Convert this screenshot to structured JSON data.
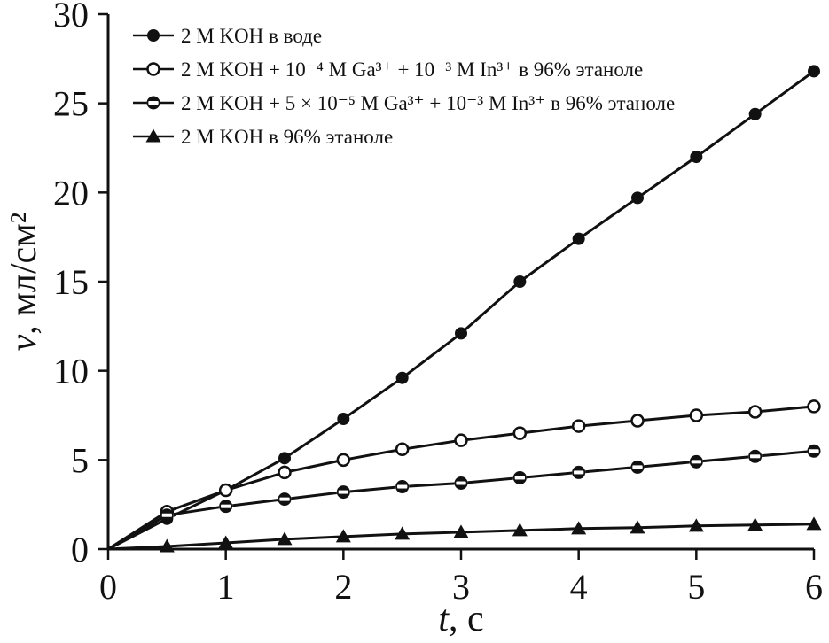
{
  "chart_data": {
    "type": "line",
    "title": "",
    "xlabel_var": "t",
    "xlabel_rest": ", с",
    "ylabel_var": "v",
    "ylabel_rest": ", мл/см²",
    "xlim": [
      0,
      6
    ],
    "ylim": [
      0,
      30
    ],
    "x_ticks": [
      0,
      1,
      2,
      3,
      4,
      5,
      6
    ],
    "y_ticks": [
      0,
      5,
      10,
      15,
      20,
      25,
      30
    ],
    "grid": false,
    "legend_position": "top-left",
    "axis_color": "#111111",
    "line_color": "#111111",
    "x": [
      0,
      0.5,
      1,
      1.5,
      2,
      2.5,
      3,
      3.5,
      4,
      4.5,
      5,
      5.5,
      6
    ],
    "skip_marker_at_origin": true,
    "series": [
      {
        "name": "2 M KOH в воде",
        "marker": "circle-filled",
        "values": [
          0,
          1.7,
          3.3,
          5.1,
          7.3,
          9.6,
          12.1,
          15.0,
          17.4,
          19.7,
          22.0,
          24.4,
          26.8
        ]
      },
      {
        "name": "2 M KOH + 10⁻⁴ M Ga³⁺ + 10⁻³ M In³⁺ в 96% этаноле",
        "marker": "circle-open",
        "values": [
          0,
          2.1,
          3.3,
          4.3,
          5.0,
          5.6,
          6.1,
          6.5,
          6.9,
          7.2,
          7.5,
          7.7,
          8.0
        ]
      },
      {
        "name": "2 M KOH + 5 × 10⁻⁵ M Ga³⁺ + 10⁻³ M In³⁺ в 96% этаноле",
        "marker": "circle-half",
        "values": [
          0,
          1.9,
          2.4,
          2.8,
          3.2,
          3.5,
          3.7,
          4.0,
          4.3,
          4.6,
          4.9,
          5.2,
          5.5
        ]
      },
      {
        "name": "2 M KOH в 96% этаноле",
        "marker": "triangle-filled",
        "values": [
          0,
          0.15,
          0.35,
          0.55,
          0.7,
          0.85,
          0.95,
          1.05,
          1.15,
          1.2,
          1.3,
          1.35,
          1.4
        ]
      }
    ]
  }
}
